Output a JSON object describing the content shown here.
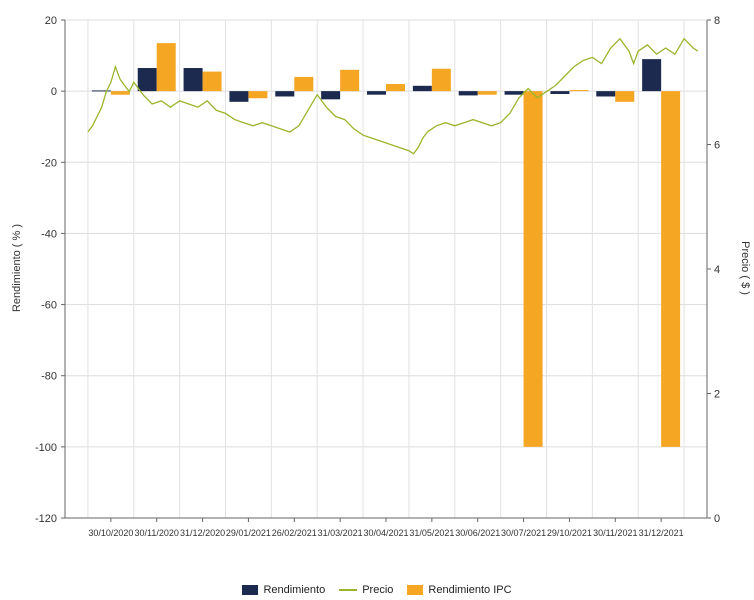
{
  "chart_data": {
    "type": "bar",
    "categories": [
      "30/10/2020",
      "30/11/2020",
      "31/12/2020",
      "29/01/2021",
      "26/02/2021",
      "31/03/2021",
      "30/04/2021",
      "31/05/2021",
      "30/06/2021",
      "30/07/2021",
      "29/10/2021",
      "30/11/2021",
      "31/12/2021"
    ],
    "series": [
      {
        "name": "Rendimiento",
        "color": "#1b2a4e",
        "axis": "left",
        "values": [
          0.2,
          6.5,
          6.5,
          -3,
          -1.5,
          -2.3,
          -1,
          1.5,
          -1.2,
          -1,
          -0.8,
          -1.5,
          9
        ]
      },
      {
        "name": "Rendimiento IPC",
        "color": "#f5a623",
        "axis": "left",
        "values": [
          -1,
          13.5,
          5.5,
          -2,
          4,
          6,
          2,
          6.3,
          -1,
          -100,
          0.3,
          -3,
          -100
        ]
      }
    ],
    "line_series": {
      "name": "Precio",
      "color": "#9ab52c",
      "axis": "right",
      "points": [
        [
          0.0,
          6.2
        ],
        [
          0.1,
          6.3
        ],
        [
          0.2,
          6.45
        ],
        [
          0.3,
          6.6
        ],
        [
          0.4,
          6.85
        ],
        [
          0.5,
          7.0
        ],
        [
          0.6,
          7.25
        ],
        [
          0.7,
          7.05
        ],
        [
          0.8,
          6.95
        ],
        [
          0.9,
          6.85
        ],
        [
          1.0,
          7.0
        ],
        [
          1.1,
          6.9
        ],
        [
          1.2,
          6.8
        ],
        [
          1.4,
          6.65
        ],
        [
          1.6,
          6.7
        ],
        [
          1.8,
          6.6
        ],
        [
          2.0,
          6.7
        ],
        [
          2.2,
          6.65
        ],
        [
          2.4,
          6.6
        ],
        [
          2.6,
          6.7
        ],
        [
          2.8,
          6.55
        ],
        [
          3.0,
          6.5
        ],
        [
          3.2,
          6.4
        ],
        [
          3.4,
          6.35
        ],
        [
          3.6,
          6.3
        ],
        [
          3.8,
          6.35
        ],
        [
          4.0,
          6.3
        ],
        [
          4.2,
          6.25
        ],
        [
          4.4,
          6.2
        ],
        [
          4.6,
          6.3
        ],
        [
          4.8,
          6.55
        ],
        [
          5.0,
          6.8
        ],
        [
          5.2,
          6.6
        ],
        [
          5.4,
          6.45
        ],
        [
          5.6,
          6.4
        ],
        [
          5.8,
          6.25
        ],
        [
          6.0,
          6.15
        ],
        [
          6.2,
          6.1
        ],
        [
          6.4,
          6.05
        ],
        [
          6.6,
          6.0
        ],
        [
          6.8,
          5.95
        ],
        [
          7.0,
          5.9
        ],
        [
          7.1,
          5.85
        ],
        [
          7.2,
          5.95
        ],
        [
          7.3,
          6.1
        ],
        [
          7.4,
          6.2
        ],
        [
          7.6,
          6.3
        ],
        [
          7.8,
          6.35
        ],
        [
          8.0,
          6.3
        ],
        [
          8.2,
          6.35
        ],
        [
          8.4,
          6.4
        ],
        [
          8.6,
          6.35
        ],
        [
          8.8,
          6.3
        ],
        [
          9.0,
          6.35
        ],
        [
          9.2,
          6.5
        ],
        [
          9.4,
          6.75
        ],
        [
          9.6,
          6.9
        ],
        [
          9.8,
          6.75
        ],
        [
          10.0,
          6.85
        ],
        [
          10.2,
          6.95
        ],
        [
          10.4,
          7.1
        ],
        [
          10.6,
          7.25
        ],
        [
          10.8,
          7.35
        ],
        [
          11.0,
          7.4
        ],
        [
          11.2,
          7.3
        ],
        [
          11.4,
          7.55
        ],
        [
          11.6,
          7.7
        ],
        [
          11.8,
          7.5
        ],
        [
          11.9,
          7.3
        ],
        [
          12.0,
          7.5
        ],
        [
          12.2,
          7.6
        ],
        [
          12.4,
          7.45
        ],
        [
          12.6,
          7.55
        ],
        [
          12.8,
          7.45
        ],
        [
          13.0,
          7.7
        ],
        [
          13.2,
          7.55
        ],
        [
          13.3,
          7.5
        ]
      ]
    },
    "ylabel": "Rendimiento ( % )",
    "y2label": "Precio ( $ )",
    "ylim": [
      -120,
      20
    ],
    "y2lim": [
      0,
      8
    ],
    "yticks": [
      20,
      0,
      -20,
      -40,
      -60,
      -80,
      -100,
      -120
    ],
    "y2ticks": [
      8,
      6,
      4,
      2,
      0
    ],
    "grid": true,
    "legend_position": "bottom",
    "legend": [
      "Rendimiento",
      "Precio",
      "Rendimiento IPC"
    ]
  }
}
